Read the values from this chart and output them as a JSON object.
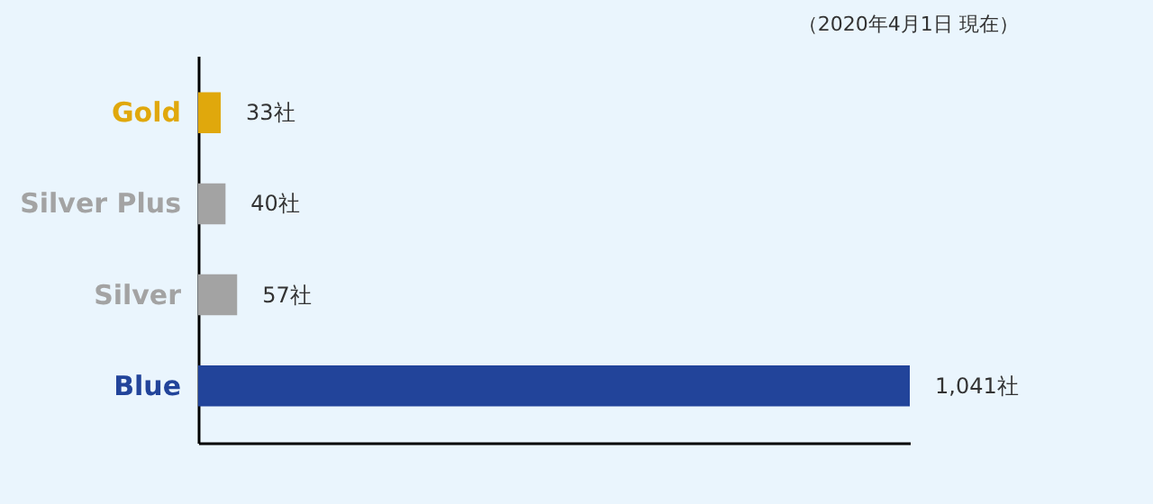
{
  "chart_data": {
    "type": "bar",
    "orientation": "horizontal",
    "annotations": [
      "（2020年4月1日 現在）"
    ],
    "categories": [
      "Gold",
      "Silver Plus",
      "Silver",
      "Blue"
    ],
    "values": [
      33,
      40,
      57,
      1041
    ],
    "colors": [
      "#e0a80c",
      "#a3a3a3",
      "#a3a3a3",
      "#22449a"
    ],
    "value_labels": [
      "33社",
      "40社",
      "57社",
      "1,041社"
    ]
  }
}
